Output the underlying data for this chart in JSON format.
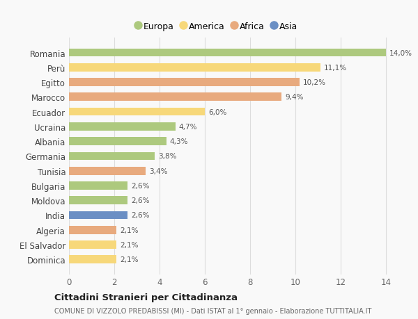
{
  "countries": [
    "Romania",
    "Perù",
    "Egitto",
    "Marocco",
    "Ecuador",
    "Ucraina",
    "Albania",
    "Germania",
    "Tunisia",
    "Bulgaria",
    "Moldova",
    "India",
    "Algeria",
    "El Salvador",
    "Dominica"
  ],
  "values": [
    14.0,
    11.1,
    10.2,
    9.4,
    6.0,
    4.7,
    4.3,
    3.8,
    3.4,
    2.6,
    2.6,
    2.6,
    2.1,
    2.1,
    2.1
  ],
  "labels": [
    "14,0%",
    "11,1%",
    "10,2%",
    "9,4%",
    "6,0%",
    "4,7%",
    "4,3%",
    "3,8%",
    "3,4%",
    "2,6%",
    "2,6%",
    "2,6%",
    "2,1%",
    "2,1%",
    "2,1%"
  ],
  "continents": [
    "Europa",
    "America",
    "Africa",
    "Africa",
    "America",
    "Europa",
    "Europa",
    "Europa",
    "Africa",
    "Europa",
    "Europa",
    "Asia",
    "Africa",
    "America",
    "America"
  ],
  "colors": {
    "Europa": "#adc97e",
    "America": "#f7d87a",
    "Africa": "#e8aa7e",
    "Asia": "#6b8fc4"
  },
  "xlim": [
    0,
    14.5
  ],
  "xticks": [
    0,
    2,
    4,
    6,
    8,
    10,
    12,
    14
  ],
  "title": "Cittadini Stranieri per Cittadinanza",
  "subtitle": "COMUNE DI VIZZOLO PREDABISSI (MI) - Dati ISTAT al 1° gennaio - Elaborazione TUTTITALIA.IT",
  "bg_color": "#f9f9f9",
  "grid_color": "#dddddd",
  "legend_order": [
    "Europa",
    "America",
    "Africa",
    "Asia"
  ]
}
